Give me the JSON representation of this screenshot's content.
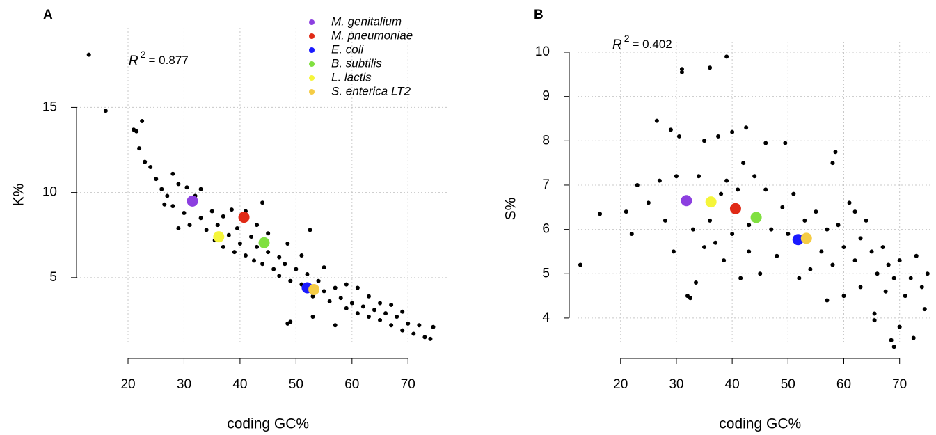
{
  "chart_data": [
    {
      "type": "scatter",
      "panel_label": "A",
      "xlabel": "coding GC%",
      "ylabel": "K%",
      "annotation": {
        "symbol": "R",
        "exponent": "2",
        "text": "= 0.877"
      },
      "xlim": [
        10.8,
        77.3
      ],
      "ylim": [
        1.27,
        20.5
      ],
      "xticks": [
        20,
        30,
        40,
        50,
        60,
        70
      ],
      "yticks": [
        5,
        10,
        15
      ],
      "grid": true,
      "legend": "top",
      "series": [
        {
          "color": "#000000",
          "x": [
            13,
            16,
            21,
            21.5,
            22,
            22.5,
            23,
            24,
            25,
            26,
            27,
            28,
            28,
            29,
            30,
            30.5,
            31,
            32,
            33,
            33,
            34,
            35,
            35.5,
            36,
            37,
            37,
            38,
            38.5,
            39,
            39.5,
            40,
            41,
            41,
            42,
            42.5,
            43,
            43,
            44,
            45,
            45,
            46,
            47,
            47,
            48,
            48.5,
            49,
            49,
            50,
            51,
            51,
            52,
            52.5,
            53,
            54,
            55,
            55,
            56,
            57,
            57,
            58,
            59,
            59,
            60,
            61,
            61,
            62,
            63,
            63,
            64,
            65,
            65,
            66,
            67,
            67,
            68,
            69,
            69,
            70,
            71,
            72,
            73,
            74,
            74.5,
            44,
            53,
            48.5,
            26.5,
            29
          ],
          "values": [
            18.1,
            14.8,
            13.7,
            13.6,
            12.6,
            14.2,
            11.8,
            11.5,
            10.8,
            10.2,
            9.8,
            11.1,
            9.2,
            10.5,
            8.8,
            10.3,
            8.1,
            9.8,
            8.5,
            10.2,
            7.8,
            8.9,
            7.2,
            8.1,
            6.8,
            8.6,
            7.5,
            9.0,
            6.5,
            7.9,
            7.0,
            6.3,
            8.9,
            7.4,
            6.0,
            6.8,
            8.1,
            5.8,
            6.5,
            7.6,
            5.5,
            6.2,
            5.1,
            5.8,
            7.0,
            4.8,
            2.4,
            5.5,
            4.6,
            6.3,
            5.2,
            7.8,
            3.9,
            4.8,
            4.2,
            5.6,
            3.6,
            4.4,
            2.2,
            3.8,
            4.6,
            3.2,
            3.5,
            2.9,
            4.4,
            3.3,
            2.7,
            3.9,
            3.1,
            2.5,
            3.5,
            2.9,
            2.2,
            3.4,
            2.7,
            1.9,
            3.0,
            2.3,
            1.7,
            2.2,
            1.5,
            1.4,
            2.1,
            9.4,
            2.7,
            2.3,
            9.3,
            7.9
          ]
        },
        {
          "name": "M. genitalium",
          "color": "#8c3fe0",
          "x": [
            31.5
          ],
          "values": [
            9.5
          ]
        },
        {
          "name": "M. pneumoniae",
          "color": "#e02a16",
          "x": [
            40.7
          ],
          "values": [
            8.55
          ]
        },
        {
          "name": "E. coli",
          "color": "#1a1aff",
          "x": [
            52
          ],
          "values": [
            4.4
          ]
        },
        {
          "name": "B. subtilis",
          "color": "#80e040",
          "x": [
            44.3
          ],
          "values": [
            7.05
          ]
        },
        {
          "name": "L. lactis",
          "color": "#f5f53a",
          "x": [
            36.2
          ],
          "values": [
            7.4
          ]
        },
        {
          "name": "S. enterica LT2",
          "color": "#f5cc45",
          "x": [
            53.2
          ],
          "values": [
            4.3
          ]
        }
      ]
    },
    {
      "type": "scatter",
      "panel_label": "B",
      "xlabel": "coding GC%",
      "ylabel": "S%",
      "annotation": {
        "symbol": "R",
        "exponent": "2",
        "text": "= 0.402"
      },
      "xlim": [
        12.3,
        75.9
      ],
      "ylim": [
        3.48,
        10.55
      ],
      "xticks": [
        20,
        30,
        40,
        50,
        60,
        70
      ],
      "yticks": [
        4,
        5,
        6,
        7,
        8,
        9,
        10
      ],
      "grid": true,
      "series": [
        {
          "color": "#000000",
          "x": [
            12.8,
            16.3,
            21,
            22,
            23,
            25,
            26.5,
            27,
            28,
            29,
            29.5,
            30,
            30.5,
            31,
            31,
            32,
            32.5,
            33,
            33.5,
            34,
            35,
            35,
            36,
            36,
            37,
            37.5,
            38,
            38.5,
            39,
            39,
            40,
            40,
            41,
            41.5,
            42,
            42.5,
            43,
            43,
            44,
            45,
            46,
            46,
            47,
            48,
            49,
            49.5,
            50,
            51,
            52,
            53,
            54,
            55,
            56,
            57,
            57,
            58,
            58.5,
            59,
            60,
            60,
            61,
            62,
            63,
            63,
            64,
            65,
            65.5,
            65.5,
            66,
            67,
            67.5,
            68,
            68.5,
            69,
            69,
            70,
            70,
            71,
            72,
            72.5,
            73,
            74,
            74.5,
            75,
            62,
            58
          ],
          "values": [
            5.2,
            6.35,
            6.4,
            5.9,
            7.0,
            6.6,
            8.45,
            7.1,
            6.2,
            8.25,
            5.5,
            7.2,
            8.1,
            9.62,
            9.55,
            4.5,
            4.45,
            6.0,
            4.8,
            7.2,
            5.6,
            8.0,
            9.65,
            6.2,
            5.7,
            8.1,
            6.8,
            5.3,
            9.9,
            7.1,
            8.2,
            5.9,
            6.9,
            4.9,
            7.5,
            8.3,
            6.1,
            5.5,
            7.2,
            5.0,
            6.9,
            7.95,
            6.0,
            5.4,
            6.5,
            7.95,
            5.9,
            6.8,
            4.9,
            6.2,
            5.1,
            6.4,
            5.5,
            4.4,
            6.0,
            5.2,
            7.75,
            6.1,
            5.6,
            4.5,
            6.6,
            5.3,
            5.8,
            4.7,
            6.2,
            5.5,
            4.1,
            3.95,
            5.0,
            5.6,
            4.6,
            5.2,
            3.5,
            3.35,
            4.9,
            5.3,
            3.8,
            4.5,
            4.9,
            3.55,
            5.4,
            4.7,
            4.2,
            5.0,
            6.4,
            7.5
          ]
        },
        {
          "color": "#8c3fe0",
          "x": [
            31.8
          ],
          "values": [
            6.65
          ]
        },
        {
          "color": "#e02a16",
          "x": [
            40.6
          ],
          "values": [
            6.47
          ]
        },
        {
          "color": "#1a1aff",
          "x": [
            51.8
          ],
          "values": [
            5.77
          ]
        },
        {
          "color": "#80e040",
          "x": [
            44.3
          ],
          "values": [
            6.27
          ]
        },
        {
          "color": "#f5f53a",
          "x": [
            36.2
          ],
          "values": [
            6.62
          ]
        },
        {
          "color": "#f5cc45",
          "x": [
            53.3
          ],
          "values": [
            5.8
          ]
        }
      ]
    }
  ]
}
